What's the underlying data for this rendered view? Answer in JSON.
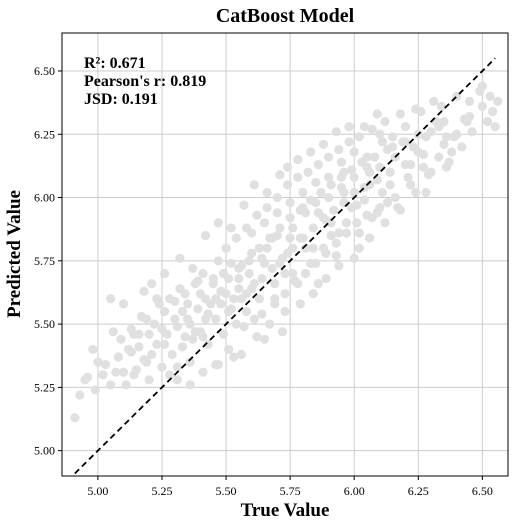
{
  "chart_data": {
    "type": "scatter",
    "title": "CatBoost Model",
    "xlabel": "True Value",
    "ylabel": "Predicted Value",
    "xlim": [
      4.86,
      6.6
    ],
    "ylim": [
      4.9,
      6.65
    ],
    "x_ticks": [
      "5.00",
      "5.25",
      "5.50",
      "5.75",
      "6.00",
      "6.25",
      "6.50"
    ],
    "y_ticks": [
      "5.00",
      "5.25",
      "5.50",
      "5.75",
      "6.00",
      "6.25",
      "6.50"
    ],
    "grid": true,
    "annotations": [
      "R²: 0.671",
      "Pearson's r: 0.819",
      "JSD: 0.191"
    ],
    "reference_line": {
      "style": "dashed",
      "color": "#000000",
      "from": [
        4.91,
        4.91
      ],
      "to": [
        6.55,
        6.55
      ]
    },
    "points_color": "#e0e0e0",
    "points": [
      [
        4.91,
        5.13
      ],
      [
        4.93,
        5.22
      ],
      [
        4.96,
        5.29
      ],
      [
        4.99,
        5.24
      ],
      [
        5.03,
        5.34
      ],
      [
        5.05,
        5.26
      ],
      [
        5.08,
        5.37
      ],
      [
        5.1,
        5.31
      ],
      [
        5.12,
        5.4
      ],
      [
        5.14,
        5.3
      ],
      [
        5.16,
        5.46
      ],
      [
        5.18,
        5.36
      ],
      [
        5.2,
        5.28
      ],
      [
        5.22,
        5.5
      ],
      [
        5.23,
        5.42
      ],
      [
        5.25,
        5.33
      ],
      [
        5.26,
        5.55
      ],
      [
        5.27,
        5.46
      ],
      [
        5.29,
        5.38
      ],
      [
        5.3,
        5.59
      ],
      [
        5.31,
        5.49
      ],
      [
        5.33,
        5.41
      ],
      [
        5.34,
        5.62
      ],
      [
        5.35,
        5.52
      ],
      [
        5.36,
        5.35
      ],
      [
        5.38,
        5.66
      ],
      [
        5.39,
        5.56
      ],
      [
        5.4,
        5.47
      ],
      [
        5.41,
        5.7
      ],
      [
        5.42,
        5.6
      ],
      [
        5.43,
        5.42
      ],
      [
        5.45,
        5.66
      ],
      [
        5.46,
        5.52
      ],
      [
        5.47,
        5.75
      ],
      [
        5.48,
        5.63
      ],
      [
        5.49,
        5.46
      ],
      [
        5.5,
        5.8
      ],
      [
        5.51,
        5.68
      ],
      [
        5.52,
        5.56
      ],
      [
        5.53,
        5.37
      ],
      [
        5.54,
        5.84
      ],
      [
        5.55,
        5.72
      ],
      [
        5.56,
        5.6
      ],
      [
        5.57,
        5.49
      ],
      [
        5.58,
        5.88
      ],
      [
        5.59,
        5.75
      ],
      [
        5.6,
        5.64
      ],
      [
        5.61,
        5.52
      ],
      [
        5.62,
        5.93
      ],
      [
        5.63,
        5.8
      ],
      [
        5.64,
        5.68
      ],
      [
        5.65,
        5.44
      ],
      [
        5.66,
        5.96
      ],
      [
        5.67,
        5.84
      ],
      [
        5.68,
        5.72
      ],
      [
        5.69,
        5.58
      ],
      [
        5.7,
        6.0
      ],
      [
        5.71,
        5.88
      ],
      [
        5.72,
        5.76
      ],
      [
        5.73,
        5.62
      ],
      [
        5.74,
        6.05
      ],
      [
        5.75,
        5.92
      ],
      [
        5.76,
        5.8
      ],
      [
        5.77,
        5.67
      ],
      [
        5.78,
        6.08
      ],
      [
        5.79,
        5.95
      ],
      [
        5.8,
        5.84
      ],
      [
        5.81,
        5.7
      ],
      [
        5.82,
        6.1
      ],
      [
        5.83,
        5.99
      ],
      [
        5.84,
        5.88
      ],
      [
        5.85,
        5.74
      ],
      [
        5.86,
        6.13
      ],
      [
        5.87,
        6.02
      ],
      [
        5.88,
        5.92
      ],
      [
        5.89,
        5.78
      ],
      [
        5.9,
        6.16
      ],
      [
        5.91,
        6.05
      ],
      [
        5.92,
        5.95
      ],
      [
        5.93,
        5.82
      ],
      [
        5.94,
        6.19
      ],
      [
        5.95,
        6.08
      ],
      [
        5.96,
        5.98
      ],
      [
        5.97,
        5.86
      ],
      [
        5.98,
        6.22
      ],
      [
        5.99,
        6.11
      ],
      [
        6.0,
        6.02
      ],
      [
        6.01,
        5.9
      ],
      [
        6.02,
        6.24
      ],
      [
        6.03,
        6.14
      ],
      [
        6.04,
        6.04
      ],
      [
        6.05,
        5.93
      ],
      [
        6.07,
        6.27
      ],
      [
        6.08,
        6.16
      ],
      [
        6.09,
        6.07
      ],
      [
        6.1,
        5.96
      ],
      [
        6.12,
        6.3
      ],
      [
        6.13,
        6.19
      ],
      [
        6.14,
        6.1
      ],
      [
        6.16,
        6.0
      ],
      [
        6.18,
        6.33
      ],
      [
        6.19,
        6.22
      ],
      [
        6.2,
        6.13
      ],
      [
        6.22,
        6.05
      ],
      [
        6.24,
        6.35
      ],
      [
        6.25,
        6.25
      ],
      [
        6.27,
        6.17
      ],
      [
        6.29,
        6.09
      ],
      [
        6.31,
        6.38
      ],
      [
        6.33,
        6.28
      ],
      [
        6.35,
        6.21
      ],
      [
        6.37,
        6.14
      ],
      [
        6.4,
        6.4
      ],
      [
        6.43,
        6.31
      ],
      [
        6.46,
        6.26
      ],
      [
        6.5,
        6.44
      ],
      [
        6.54,
        6.34
      ],
      [
        6.56,
        6.38
      ],
      [
        5.11,
        5.26
      ],
      [
        5.13,
        5.48
      ],
      [
        5.15,
        5.32
      ],
      [
        5.17,
        5.53
      ],
      [
        5.21,
        5.38
      ],
      [
        5.24,
        5.58
      ],
      [
        5.28,
        5.3
      ],
      [
        5.32,
        5.64
      ],
      [
        5.37,
        5.44
      ],
      [
        5.44,
        5.58
      ],
      [
        5.47,
        5.34
      ],
      [
        5.52,
        5.74
      ],
      [
        5.58,
        5.55
      ],
      [
        5.63,
        5.6
      ],
      [
        5.68,
        5.84
      ],
      [
        5.72,
        5.47
      ],
      [
        5.76,
        5.7
      ],
      [
        5.81,
        5.94
      ],
      [
        5.86,
        5.66
      ],
      [
        5.91,
        5.9
      ],
      [
        5.96,
        6.1
      ],
      [
        6.02,
        5.8
      ],
      [
        6.06,
        6.05
      ],
      [
        6.11,
        6.22
      ],
      [
        6.17,
        5.96
      ],
      [
        6.23,
        6.2
      ],
      [
        6.28,
        6.02
      ],
      [
        6.32,
        6.3
      ],
      [
        6.38,
        6.18
      ],
      [
        5.1,
        5.58
      ],
      [
        5.16,
        5.41
      ],
      [
        5.21,
        5.66
      ],
      [
        5.26,
        5.7
      ],
      [
        5.32,
        5.76
      ],
      [
        5.37,
        5.72
      ],
      [
        5.42,
        5.85
      ],
      [
        5.47,
        5.9
      ],
      [
        5.52,
        5.88
      ],
      [
        5.57,
        5.97
      ],
      [
        5.61,
        6.05
      ],
      [
        5.66,
        6.02
      ],
      [
        5.71,
        6.09
      ],
      [
        5.74,
        6.12
      ],
      [
        5.78,
        6.15
      ],
      [
        5.83,
        6.18
      ],
      [
        5.88,
        6.21
      ],
      [
        5.93,
        6.26
      ],
      [
        5.98,
        6.28
      ],
      [
        6.04,
        6.28
      ],
      [
        6.09,
        6.33
      ],
      [
        5.31,
        5.28
      ],
      [
        5.36,
        5.26
      ],
      [
        5.41,
        5.31
      ],
      [
        5.46,
        5.34
      ],
      [
        5.51,
        5.4
      ],
      [
        5.56,
        5.38
      ],
      [
        5.62,
        5.45
      ],
      [
        5.67,
        5.5
      ],
      [
        5.73,
        5.55
      ],
      [
        5.79,
        5.58
      ],
      [
        5.84,
        5.62
      ],
      [
        5.89,
        5.68
      ],
      [
        5.94,
        5.73
      ],
      [
        6.0,
        5.76
      ],
      [
        6.06,
        5.84
      ],
      [
        6.12,
        5.9
      ],
      [
        6.18,
        5.95
      ],
      [
        6.24,
        6.02
      ],
      [
        6.3,
        6.1
      ],
      [
        6.36,
        6.12
      ],
      [
        6.42,
        6.2
      ],
      [
        5.06,
        5.47
      ],
      [
        5.18,
        5.63
      ],
      [
        5.23,
        5.6
      ],
      [
        5.33,
        5.55
      ],
      [
        5.39,
        5.67
      ],
      [
        5.49,
        5.7
      ],
      [
        5.55,
        5.64
      ],
      [
        5.6,
        5.78
      ],
      [
        5.65,
        5.74
      ],
      [
        5.7,
        5.85
      ],
      [
        5.75,
        5.98
      ],
      [
        5.8,
        5.96
      ],
      [
        5.85,
        6.06
      ],
      [
        5.9,
        6.0
      ],
      [
        5.95,
        6.14
      ],
      [
        6.0,
        6.18
      ],
      [
        6.05,
        6.12
      ],
      [
        6.1,
        6.25
      ],
      [
        6.15,
        6.2
      ],
      [
        6.2,
        6.28
      ],
      [
        6.26,
        6.34
      ],
      [
        6.34,
        6.36
      ],
      [
        6.45,
        6.38
      ],
      [
        6.52,
        6.3
      ],
      [
        5.05,
        5.6
      ],
      [
        5.38,
        5.47
      ],
      [
        5.42,
        5.52
      ],
      [
        5.53,
        5.6
      ],
      [
        5.59,
        5.7
      ],
      [
        5.64,
        5.76
      ],
      [
        5.69,
        5.66
      ],
      [
        5.74,
        5.78
      ],
      [
        5.79,
        5.84
      ],
      [
        5.84,
        5.8
      ],
      [
        5.89,
        5.91
      ],
      [
        5.94,
        5.86
      ],
      [
        5.99,
        5.96
      ],
      [
        6.04,
        5.99
      ],
      [
        6.09,
        5.94
      ],
      [
        6.14,
        6.05
      ],
      [
        4.98,
        5.4
      ],
      [
        5.02,
        5.3
      ],
      [
        5.09,
        5.44
      ],
      [
        5.13,
        5.39
      ],
      [
        5.19,
        5.52
      ],
      [
        5.25,
        5.48
      ],
      [
        5.3,
        5.52
      ],
      [
        5.35,
        5.58
      ],
      [
        5.4,
        5.62
      ],
      [
        5.45,
        5.68
      ],
      [
        5.5,
        5.62
      ],
      [
        5.55,
        5.68
      ],
      [
        5.6,
        5.86
      ],
      [
        5.65,
        5.9
      ],
      [
        5.7,
        5.94
      ],
      [
        5.75,
        5.84
      ],
      [
        5.8,
        6.02
      ],
      [
        5.85,
        5.98
      ],
      [
        5.9,
        6.08
      ],
      [
        5.95,
        6.04
      ],
      [
        6.0,
        6.08
      ],
      [
        6.05,
        6.16
      ],
      [
        6.1,
        6.12
      ],
      [
        6.15,
        6.24
      ],
      [
        6.2,
        6.22
      ],
      [
        6.25,
        6.18
      ],
      [
        6.3,
        6.26
      ],
      [
        6.35,
        6.3
      ],
      [
        6.4,
        6.25
      ],
      [
        6.45,
        6.32
      ],
      [
        6.5,
        6.36
      ],
      [
        6.55,
        6.28
      ],
      [
        5.2,
        5.46
      ],
      [
        5.28,
        5.6
      ],
      [
        5.34,
        5.45
      ],
      [
        5.43,
        5.54
      ],
      [
        5.48,
        5.58
      ],
      [
        5.54,
        5.5
      ],
      [
        5.58,
        5.62
      ],
      [
        5.64,
        5.54
      ],
      [
        5.69,
        5.6
      ],
      [
        5.73,
        5.7
      ],
      [
        5.78,
        5.66
      ],
      [
        5.83,
        5.74
      ],
      [
        5.88,
        5.8
      ],
      [
        5.93,
        5.77
      ],
      [
        5.97,
        5.9
      ],
      [
        6.02,
        5.86
      ],
      [
        6.07,
        5.92
      ],
      [
        6.13,
        5.98
      ],
      [
        6.21,
        6.08
      ],
      [
        6.27,
        6.12
      ],
      [
        6.33,
        6.16
      ],
      [
        6.39,
        6.24
      ],
      [
        4.95,
        5.28
      ],
      [
        5.0,
        5.35
      ],
      [
        5.07,
        5.31
      ],
      [
        5.14,
        5.46
      ],
      [
        5.19,
        5.35
      ],
      [
        5.26,
        5.42
      ],
      [
        5.31,
        5.33
      ],
      [
        5.36,
        5.5
      ],
      [
        5.41,
        5.45
      ],
      [
        5.46,
        5.6
      ],
      [
        5.51,
        5.55
      ],
      [
        5.56,
        5.73
      ],
      [
        5.61,
        5.66
      ],
      [
        5.66,
        5.8
      ],
      [
        5.71,
        5.74
      ],
      [
        5.76,
        5.88
      ],
      [
        5.81,
        5.8
      ],
      [
        5.86,
        5.94
      ],
      [
        5.91,
        5.85
      ],
      [
        5.96,
        6.02
      ],
      [
        6.01,
        5.97
      ],
      [
        6.06,
        6.1
      ],
      [
        6.11,
        6.02
      ],
      [
        6.16,
        6.16
      ],
      [
        6.22,
        6.13
      ],
      [
        6.28,
        6.24
      ],
      [
        6.36,
        6.24
      ],
      [
        6.44,
        6.3
      ],
      [
        6.49,
        6.42
      ],
      [
        6.53,
        6.4
      ]
    ]
  }
}
